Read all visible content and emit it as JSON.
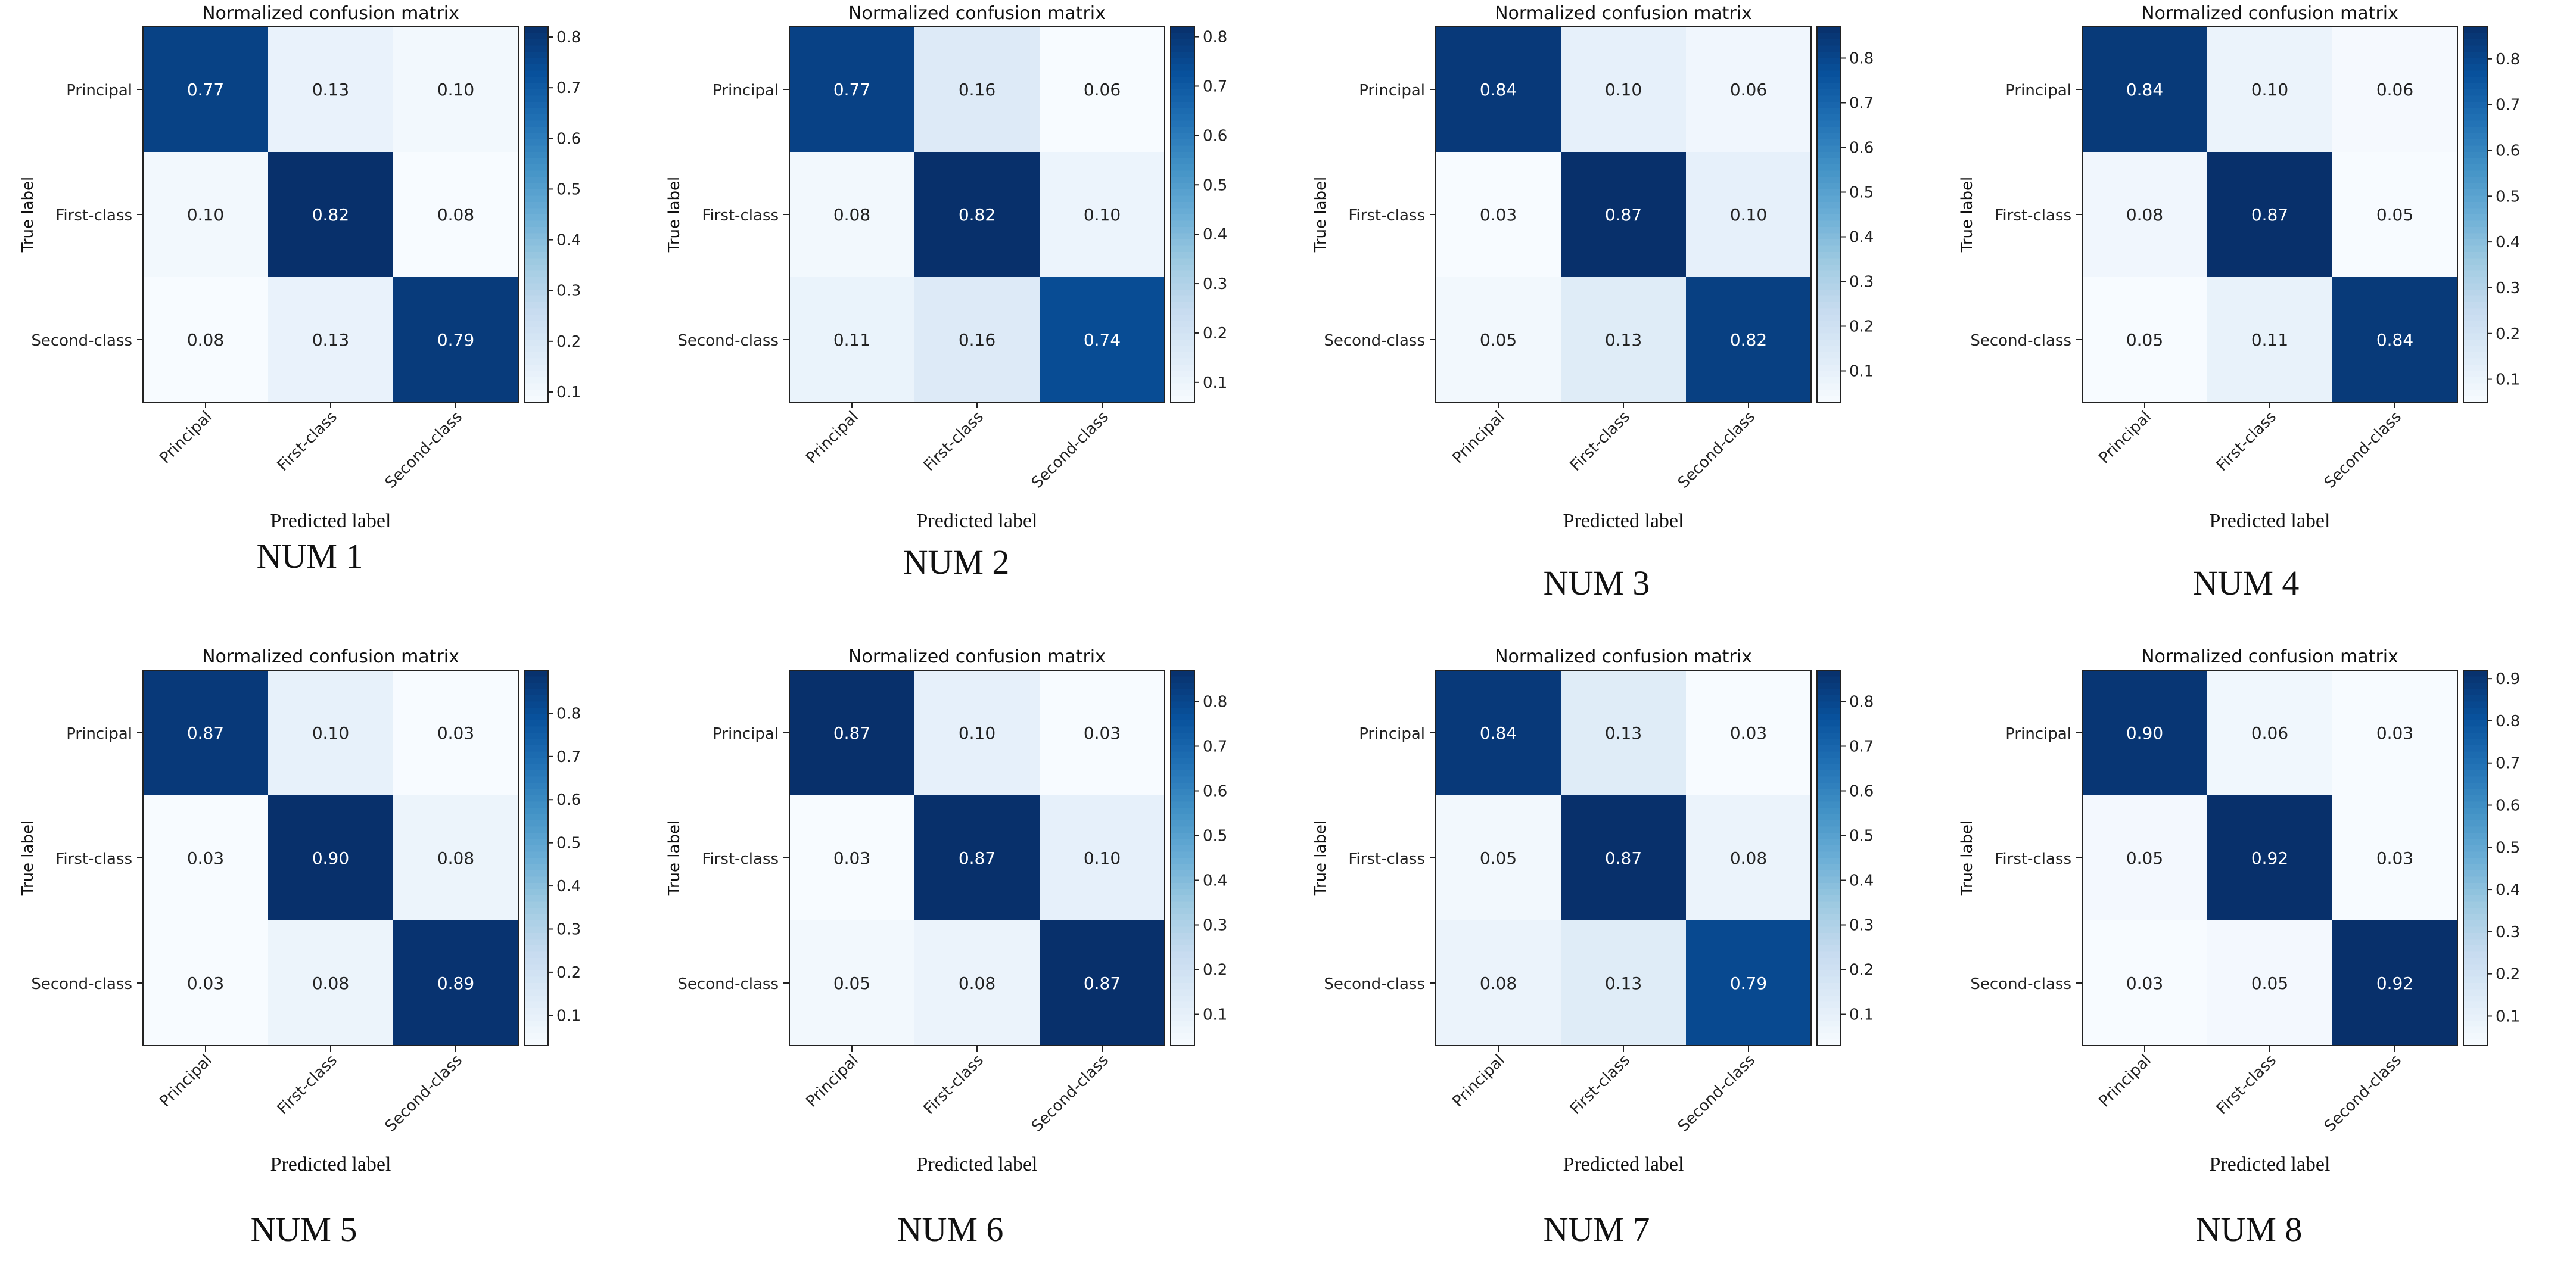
{
  "figure": {
    "common": {
      "title": "Normalized confusion matrix",
      "xlabel": "Predicted label",
      "ylabel": "True label",
      "classes": [
        "Principal",
        "First-class",
        "Second-class"
      ],
      "colormap": "Blues"
    },
    "captions": [
      "NUM 1",
      "NUM 2",
      "NUM 3",
      "NUM 4",
      "NUM 5",
      "NUM 6",
      "NUM 7",
      "NUM 8"
    ]
  },
  "chart_data": [
    {
      "type": "heatmap",
      "title": "Normalized confusion matrix",
      "caption": "NUM 1",
      "xlabel": "Predicted label",
      "ylabel": "True label",
      "x_categories": [
        "Principal",
        "First-class",
        "Second-class"
      ],
      "y_categories": [
        "Principal",
        "First-class",
        "Second-class"
      ],
      "values": [
        [
          0.77,
          0.13,
          0.1
        ],
        [
          0.1,
          0.82,
          0.08
        ],
        [
          0.08,
          0.13,
          0.79
        ]
      ],
      "colorbar": {
        "ticks": [
          0.1,
          0.2,
          0.3,
          0.4,
          0.5,
          0.6,
          0.7,
          0.8
        ],
        "range": [
          0.08,
          0.82
        ]
      }
    },
    {
      "type": "heatmap",
      "title": "Normalized confusion matrix",
      "caption": "NUM 2",
      "xlabel": "Predicted label",
      "ylabel": "True label",
      "x_categories": [
        "Principal",
        "First-class",
        "Second-class"
      ],
      "y_categories": [
        "Principal",
        "First-class",
        "Second-class"
      ],
      "values": [
        [
          0.77,
          0.16,
          0.06
        ],
        [
          0.08,
          0.82,
          0.1
        ],
        [
          0.11,
          0.16,
          0.74
        ]
      ],
      "colorbar": {
        "ticks": [
          0.1,
          0.2,
          0.3,
          0.4,
          0.5,
          0.6,
          0.7,
          0.8
        ],
        "range": [
          0.06,
          0.82
        ]
      }
    },
    {
      "type": "heatmap",
      "title": "Normalized confusion matrix",
      "caption": "NUM 3",
      "xlabel": "Predicted label",
      "ylabel": "True label",
      "x_categories": [
        "Principal",
        "First-class",
        "Second-class"
      ],
      "y_categories": [
        "Principal",
        "First-class",
        "Second-class"
      ],
      "values": [
        [
          0.84,
          0.1,
          0.06
        ],
        [
          0.03,
          0.87,
          0.1
        ],
        [
          0.05,
          0.13,
          0.82
        ]
      ],
      "colorbar": {
        "ticks": [
          0.1,
          0.2,
          0.3,
          0.4,
          0.5,
          0.6,
          0.7,
          0.8
        ],
        "range": [
          0.03,
          0.87
        ]
      }
    },
    {
      "type": "heatmap",
      "title": "Normalized confusion matrix",
      "caption": "NUM 4",
      "xlabel": "Predicted label",
      "ylabel": "True label",
      "x_categories": [
        "Principal",
        "First-class",
        "Second-class"
      ],
      "y_categories": [
        "Principal",
        "First-class",
        "Second-class"
      ],
      "values": [
        [
          0.84,
          0.1,
          0.06
        ],
        [
          0.08,
          0.87,
          0.05
        ],
        [
          0.05,
          0.11,
          0.84
        ]
      ],
      "colorbar": {
        "ticks": [
          0.1,
          0.2,
          0.3,
          0.4,
          0.5,
          0.6,
          0.7,
          0.8
        ],
        "range": [
          0.05,
          0.87
        ]
      }
    },
    {
      "type": "heatmap",
      "title": "Normalized confusion matrix",
      "caption": "NUM 5",
      "xlabel": "Predicted label",
      "ylabel": "True label",
      "x_categories": [
        "Principal",
        "First-class",
        "Second-class"
      ],
      "y_categories": [
        "Principal",
        "First-class",
        "Second-class"
      ],
      "values": [
        [
          0.87,
          0.1,
          0.03
        ],
        [
          0.03,
          0.9,
          0.08
        ],
        [
          0.03,
          0.08,
          0.89
        ]
      ],
      "colorbar": {
        "ticks": [
          0.1,
          0.2,
          0.3,
          0.4,
          0.5,
          0.6,
          0.7,
          0.8
        ],
        "range": [
          0.03,
          0.9
        ]
      }
    },
    {
      "type": "heatmap",
      "title": "Normalized confusion matrix",
      "caption": "NUM 6",
      "xlabel": "Predicted label",
      "ylabel": "True label",
      "x_categories": [
        "Principal",
        "First-class",
        "Second-class"
      ],
      "y_categories": [
        "Principal",
        "First-class",
        "Second-class"
      ],
      "values": [
        [
          0.87,
          0.1,
          0.03
        ],
        [
          0.03,
          0.87,
          0.1
        ],
        [
          0.05,
          0.08,
          0.87
        ]
      ],
      "colorbar": {
        "ticks": [
          0.1,
          0.2,
          0.3,
          0.4,
          0.5,
          0.6,
          0.7,
          0.8
        ],
        "range": [
          0.03,
          0.87
        ]
      }
    },
    {
      "type": "heatmap",
      "title": "Normalized confusion matrix",
      "caption": "NUM 7",
      "xlabel": "Predicted label",
      "ylabel": "True label",
      "x_categories": [
        "Principal",
        "First-class",
        "Second-class"
      ],
      "y_categories": [
        "Principal",
        "First-class",
        "Second-class"
      ],
      "values": [
        [
          0.84,
          0.13,
          0.03
        ],
        [
          0.05,
          0.87,
          0.08
        ],
        [
          0.08,
          0.13,
          0.79
        ]
      ],
      "colorbar": {
        "ticks": [
          0.1,
          0.2,
          0.3,
          0.4,
          0.5,
          0.6,
          0.7,
          0.8
        ],
        "range": [
          0.03,
          0.87
        ]
      }
    },
    {
      "type": "heatmap",
      "title": "Normalized confusion matrix",
      "caption": "NUM 8",
      "xlabel": "Predicted label",
      "ylabel": "True label",
      "x_categories": [
        "Principal",
        "First-class",
        "Second-class"
      ],
      "y_categories": [
        "Principal",
        "First-class",
        "Second-class"
      ],
      "values": [
        [
          0.9,
          0.06,
          0.03
        ],
        [
          0.05,
          0.92,
          0.03
        ],
        [
          0.03,
          0.05,
          0.92
        ]
      ],
      "colorbar": {
        "ticks": [
          0.1,
          0.2,
          0.3,
          0.4,
          0.5,
          0.6,
          0.7,
          0.8,
          0.9
        ],
        "range": [
          0.03,
          0.92
        ]
      }
    }
  ]
}
